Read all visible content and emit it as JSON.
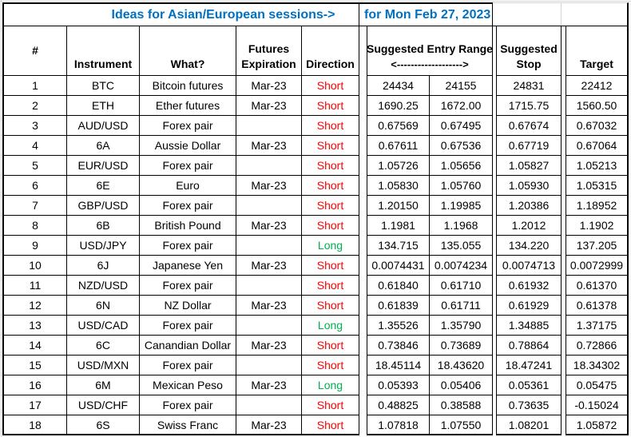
{
  "title": {
    "left": "Ideas for Asian/European sessions->",
    "right": "for Mon Feb 27, 2023"
  },
  "header": {
    "num": "#",
    "instrument": "Instrument",
    "what": "What?",
    "futures_line1": "Futures",
    "futures_line2": "Expiration",
    "direction": "Direction",
    "entry_line1": "Suggested Entry Range",
    "entry_line2": "<------------------->",
    "stop_line1": "Suggested",
    "stop_line2": "Stop",
    "target": "Target"
  },
  "colors": {
    "title_blue": "#0070C0",
    "short_red": "#FF0000",
    "long_green": "#00B050",
    "border_black": "#000000",
    "gridline_grey": "#d4d4d4"
  },
  "rows": [
    {
      "num": "1",
      "instrument": "BTC",
      "what": "Bitcoin futures",
      "expiration": "Mar-23",
      "direction": "Short",
      "entry_from": "24434",
      "entry_to": "24155",
      "stop": "24831",
      "target": "22412"
    },
    {
      "num": "2",
      "instrument": "ETH",
      "what": "Ether futures",
      "expiration": "Mar-23",
      "direction": "Short",
      "entry_from": "1690.25",
      "entry_to": "1672.00",
      "stop": "1715.75",
      "target": "1560.50"
    },
    {
      "num": "3",
      "instrument": "AUD/USD",
      "what": "Forex pair",
      "expiration": "",
      "direction": "Short",
      "entry_from": "0.67569",
      "entry_to": "0.67495",
      "stop": "0.67674",
      "target": "0.67032"
    },
    {
      "num": "4",
      "instrument": "6A",
      "what": "Aussie Dollar",
      "expiration": "Mar-23",
      "direction": "Short",
      "entry_from": "0.67611",
      "entry_to": "0.67536",
      "stop": "0.67719",
      "target": "0.67064"
    },
    {
      "num": "5",
      "instrument": "EUR/USD",
      "what": "Forex pair",
      "expiration": "",
      "direction": "Short",
      "entry_from": "1.05726",
      "entry_to": "1.05656",
      "stop": "1.05827",
      "target": "1.05213"
    },
    {
      "num": "6",
      "instrument": "6E",
      "what": "Euro",
      "expiration": "Mar-23",
      "direction": "Short",
      "entry_from": "1.05830",
      "entry_to": "1.05760",
      "stop": "1.05930",
      "target": "1.05315"
    },
    {
      "num": "7",
      "instrument": "GBP/USD",
      "what": "Forex pair",
      "expiration": "",
      "direction": "Short",
      "entry_from": "1.20150",
      "entry_to": "1.19985",
      "stop": "1.20386",
      "target": "1.18952"
    },
    {
      "num": "8",
      "instrument": "6B",
      "what": "British Pound",
      "expiration": "Mar-23",
      "direction": "Short",
      "entry_from": "1.1981",
      "entry_to": "1.1968",
      "stop": "1.2012",
      "target": "1.1902"
    },
    {
      "num": "9",
      "instrument": "USD/JPY",
      "what": "Forex pair",
      "expiration": "",
      "direction": "Long",
      "entry_from": "134.715",
      "entry_to": "135.055",
      "stop": "134.220",
      "target": "137.205"
    },
    {
      "num": "10",
      "instrument": "6J",
      "what": "Japanese Yen",
      "expiration": "Mar-23",
      "direction": "Short",
      "entry_from": "0.0074431",
      "entry_to": "0.0074234",
      "stop": "0.0074713",
      "target": "0.0072999"
    },
    {
      "num": "11",
      "instrument": "NZD/USD",
      "what": "Forex pair",
      "expiration": "",
      "direction": "Short",
      "entry_from": "0.61840",
      "entry_to": "0.61710",
      "stop": "0.61932",
      "target": "0.61370"
    },
    {
      "num": "12",
      "instrument": "6N",
      "what": "NZ Dollar",
      "expiration": "Mar-23",
      "direction": "Short",
      "entry_from": "0.61839",
      "entry_to": "0.61711",
      "stop": "0.61929",
      "target": "0.61378"
    },
    {
      "num": "13",
      "instrument": "USD/CAD",
      "what": "Forex pair",
      "expiration": "",
      "direction": "Long",
      "entry_from": "1.35526",
      "entry_to": "1.35790",
      "stop": "1.34885",
      "target": "1.37175"
    },
    {
      "num": "14",
      "instrument": "6C",
      "what": "Canandian Dollar",
      "expiration": "Mar-23",
      "direction": "Short",
      "entry_from": "0.73846",
      "entry_to": "0.73689",
      "stop": "0.78864",
      "target": "0.72866"
    },
    {
      "num": "15",
      "instrument": "USD/MXN",
      "what": "Forex pair",
      "expiration": "",
      "direction": "Short",
      "entry_from": "18.45114",
      "entry_to": "18.43620",
      "stop": "18.47241",
      "target": "18.34302"
    },
    {
      "num": "16",
      "instrument": "6M",
      "what": "Mexican Peso",
      "expiration": "Mar-23",
      "direction": "Long",
      "entry_from": "0.05393",
      "entry_to": "0.05406",
      "stop": "0.05361",
      "target": "0.05475"
    },
    {
      "num": "17",
      "instrument": "USD/CHF",
      "what": "Forex pair",
      "expiration": "",
      "direction": "Short",
      "entry_from": "0.48825",
      "entry_to": "0.38588",
      "stop": "0.73635",
      "target": "-0.15024"
    },
    {
      "num": "18",
      "instrument": "6S",
      "what": "Swiss Franc",
      "expiration": "Mar-23",
      "direction": "Short",
      "entry_from": "1.07818",
      "entry_to": "1.07550",
      "stop": "1.08201",
      "target": "1.05872"
    }
  ]
}
